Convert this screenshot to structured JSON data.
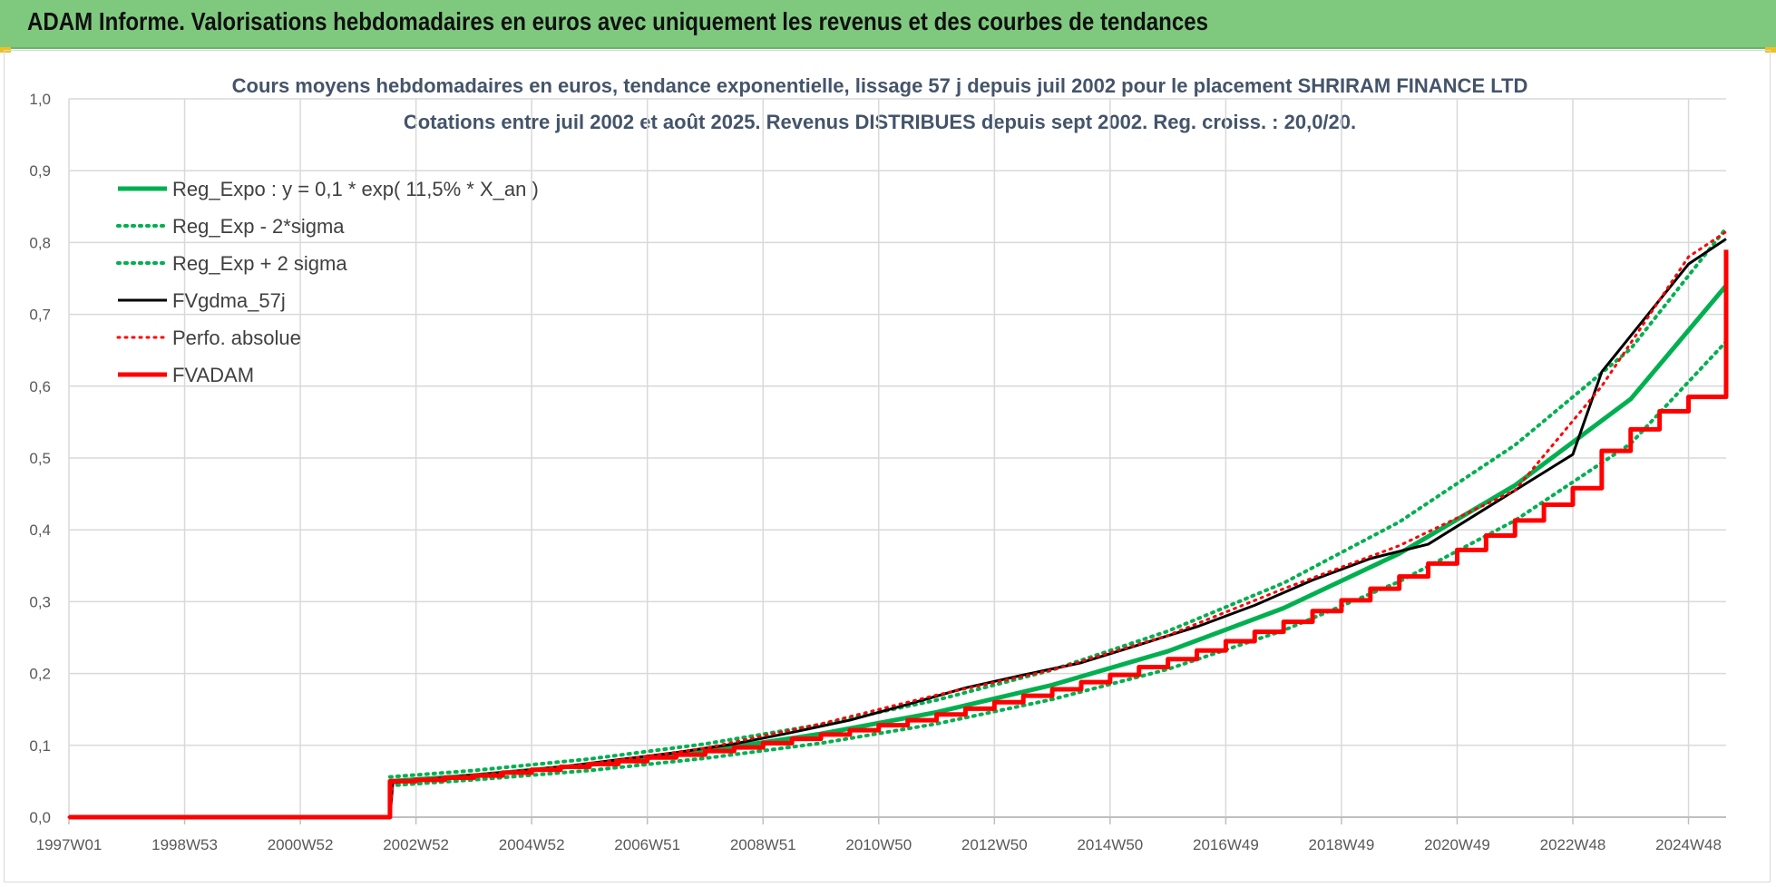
{
  "header": {
    "title": "ADAM Informe. Valorisations hebdomadaires en euros avec uniquement les revenus et des courbes de tendances"
  },
  "colors": {
    "banner": "#7fc97f",
    "green": "#00b050",
    "red": "#ff0000",
    "black": "#000000"
  },
  "chart_data": {
    "type": "line",
    "title_line1": "Cours moyens hebdomadaires en euros, tendance exponentielle, lissage 57 j depuis juil 2002 pour le placement SHRIRAM FINANCE LTD",
    "title_line2": "Cotations entre juil 2002 et août 2025. Revenus DISTRIBUES depuis sept 2002. Reg. croiss. : 20,0/20.",
    "xlabel": "",
    "ylabel": "",
    "x_range": [
      1997.0,
      2025.65
    ],
    "ylim": [
      0,
      1.0
    ],
    "y_ticks": [
      "0,0",
      "0,1",
      "0,2",
      "0,3",
      "0,4",
      "0,5",
      "0,6",
      "0,7",
      "0,8",
      "0,9",
      "1,0"
    ],
    "x_ticks": [
      {
        "label": "1997W01",
        "x": 1997.0
      },
      {
        "label": "1998W53",
        "x": 1999.0
      },
      {
        "label": "2000W52",
        "x": 2001.0
      },
      {
        "label": "2002W52",
        "x": 2003.0
      },
      {
        "label": "2004W52",
        "x": 2005.0
      },
      {
        "label": "2006W51",
        "x": 2007.0
      },
      {
        "label": "2008W51",
        "x": 2009.0
      },
      {
        "label": "2010W50",
        "x": 2011.0
      },
      {
        "label": "2012W50",
        "x": 2013.0
      },
      {
        "label": "2014W50",
        "x": 2015.0
      },
      {
        "label": "2016W49",
        "x": 2017.0
      },
      {
        "label": "2018W49",
        "x": 2019.0
      },
      {
        "label": "2020W49",
        "x": 2021.0
      },
      {
        "label": "2022W48",
        "x": 2023.0
      },
      {
        "label": "2024W48",
        "x": 2025.0
      }
    ],
    "grid": true,
    "legend_position": "top-left",
    "series": [
      {
        "name": "Reg_Expo : y = 0,1 * exp( 11,5% *  X_an )",
        "color": "#00b050",
        "style": "solid",
        "width": 5,
        "points": [
          [
            2002.55,
            0.05
          ],
          [
            2004,
            0.058
          ],
          [
            2006,
            0.073
          ],
          [
            2008,
            0.092
          ],
          [
            2010,
            0.116
          ],
          [
            2012,
            0.146
          ],
          [
            2014,
            0.184
          ],
          [
            2016,
            0.231
          ],
          [
            2018,
            0.291
          ],
          [
            2020,
            0.367
          ],
          [
            2022,
            0.462
          ],
          [
            2024,
            0.582
          ],
          [
            2025.65,
            0.74
          ]
        ]
      },
      {
        "name": "Reg_Exp - 2*sigma",
        "color": "#00b050",
        "style": "dotted",
        "width": 4,
        "points": [
          [
            2002.55,
            0.044
          ],
          [
            2004,
            0.052
          ],
          [
            2006,
            0.065
          ],
          [
            2008,
            0.082
          ],
          [
            2010,
            0.103
          ],
          [
            2012,
            0.13
          ],
          [
            2014,
            0.164
          ],
          [
            2016,
            0.206
          ],
          [
            2018,
            0.26
          ],
          [
            2020,
            0.328
          ],
          [
            2022,
            0.413
          ],
          [
            2024,
            0.52
          ],
          [
            2025.65,
            0.662
          ]
        ]
      },
      {
        "name": "Reg_Exp + 2 sigma",
        "color": "#00b050",
        "style": "dotted",
        "width": 4,
        "points": [
          [
            2002.55,
            0.056
          ],
          [
            2004,
            0.065
          ],
          [
            2006,
            0.081
          ],
          [
            2008,
            0.102
          ],
          [
            2010,
            0.129
          ],
          [
            2012,
            0.163
          ],
          [
            2014,
            0.205
          ],
          [
            2016,
            0.259
          ],
          [
            2018,
            0.326
          ],
          [
            2020,
            0.411
          ],
          [
            2022,
            0.518
          ],
          [
            2024,
            0.652
          ],
          [
            2025.65,
            0.82
          ]
        ]
      },
      {
        "name": "FVgdma_57j",
        "color": "#000000",
        "style": "solid",
        "width": 3,
        "points": [
          [
            1997.0,
            0.0
          ],
          [
            2002.55,
            0.0
          ],
          [
            2002.6,
            0.048
          ],
          [
            2003.5,
            0.055
          ],
          [
            2004.5,
            0.062
          ],
          [
            2005.5,
            0.07
          ],
          [
            2006.5,
            0.08
          ],
          [
            2007.5,
            0.09
          ],
          [
            2008.5,
            0.102
          ],
          [
            2009.5,
            0.118
          ],
          [
            2010.5,
            0.135
          ],
          [
            2011.5,
            0.157
          ],
          [
            2012.5,
            0.18
          ],
          [
            2013.5,
            0.198
          ],
          [
            2014.5,
            0.215
          ],
          [
            2015.5,
            0.24
          ],
          [
            2016.5,
            0.265
          ],
          [
            2017.5,
            0.295
          ],
          [
            2018.5,
            0.33
          ],
          [
            2019.5,
            0.36
          ],
          [
            2020.5,
            0.38
          ],
          [
            2021.5,
            0.43
          ],
          [
            2022.5,
            0.48
          ],
          [
            2023.0,
            0.505
          ],
          [
            2023.5,
            0.62
          ],
          [
            2024.0,
            0.67
          ],
          [
            2024.5,
            0.72
          ],
          [
            2025.0,
            0.77
          ],
          [
            2025.65,
            0.805
          ]
        ]
      },
      {
        "name": "Perfo. absolue",
        "color": "#ff0000",
        "style": "dotted",
        "width": 3,
        "points": [
          [
            1997.0,
            0.0
          ],
          [
            2002.55,
            0.0
          ],
          [
            2002.6,
            0.05
          ],
          [
            2004.0,
            0.058
          ],
          [
            2006.0,
            0.074
          ],
          [
            2008.0,
            0.096
          ],
          [
            2010.0,
            0.13
          ],
          [
            2012.0,
            0.17
          ],
          [
            2014.0,
            0.205
          ],
          [
            2016.0,
            0.253
          ],
          [
            2018.0,
            0.318
          ],
          [
            2020.0,
            0.378
          ],
          [
            2022.0,
            0.455
          ],
          [
            2023.5,
            0.6
          ],
          [
            2025.0,
            0.78
          ],
          [
            2025.65,
            0.815
          ]
        ]
      },
      {
        "name": "FVADAM",
        "color": "#ff0000",
        "style": "steps",
        "width": 5,
        "points": [
          [
            1997.0,
            0.0
          ],
          [
            2002.55,
            0.0
          ],
          [
            2002.55,
            0.05
          ],
          [
            2003.0,
            0.052
          ],
          [
            2003.5,
            0.055
          ],
          [
            2004.0,
            0.058
          ],
          [
            2004.5,
            0.062
          ],
          [
            2005.0,
            0.066
          ],
          [
            2005.5,
            0.07
          ],
          [
            2006.0,
            0.074
          ],
          [
            2006.5,
            0.078
          ],
          [
            2007.0,
            0.083
          ],
          [
            2007.5,
            0.087
          ],
          [
            2008.0,
            0.092
          ],
          [
            2008.5,
            0.097
          ],
          [
            2009.0,
            0.103
          ],
          [
            2009.5,
            0.109
          ],
          [
            2010.0,
            0.115
          ],
          [
            2010.5,
            0.121
          ],
          [
            2011.0,
            0.128
          ],
          [
            2011.5,
            0.135
          ],
          [
            2012.0,
            0.143
          ],
          [
            2012.5,
            0.151
          ],
          [
            2013.0,
            0.16
          ],
          [
            2013.5,
            0.169
          ],
          [
            2014.0,
            0.178
          ],
          [
            2014.5,
            0.188
          ],
          [
            2015.0,
            0.198
          ],
          [
            2015.5,
            0.209
          ],
          [
            2016.0,
            0.22
          ],
          [
            2016.5,
            0.232
          ],
          [
            2017.0,
            0.245
          ],
          [
            2017.5,
            0.258
          ],
          [
            2018.0,
            0.272
          ],
          [
            2018.5,
            0.287
          ],
          [
            2019.0,
            0.302
          ],
          [
            2019.5,
            0.318
          ],
          [
            2020.0,
            0.335
          ],
          [
            2020.5,
            0.353
          ],
          [
            2021.0,
            0.372
          ],
          [
            2021.5,
            0.392
          ],
          [
            2022.0,
            0.413
          ],
          [
            2022.5,
            0.435
          ],
          [
            2023.0,
            0.458
          ],
          [
            2023.5,
            0.51
          ],
          [
            2024.0,
            0.54
          ],
          [
            2024.5,
            0.565
          ],
          [
            2025.0,
            0.585
          ],
          [
            2025.65,
            0.79
          ]
        ]
      }
    ]
  }
}
